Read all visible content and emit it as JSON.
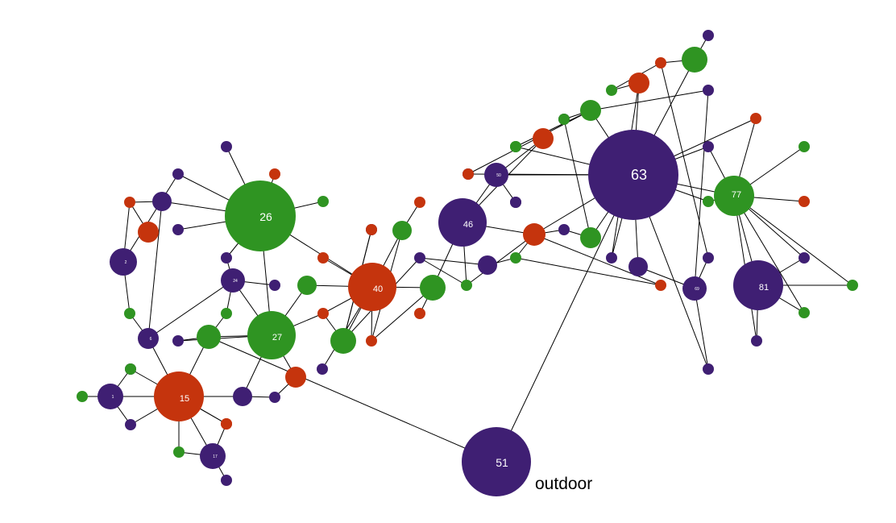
{
  "graph": {
    "colors": {
      "purple": "#3f1f73",
      "green": "#2f9422",
      "red": "#c5340d",
      "edge": "#000000",
      "label": "#ffffff",
      "annotation": "#000000"
    },
    "nodes": [
      {
        "id": "n15",
        "label": "15",
        "color": "red"
      },
      {
        "id": "n26",
        "label": "26",
        "color": "green"
      },
      {
        "id": "n27",
        "label": "27",
        "color": "green"
      },
      {
        "id": "n40",
        "label": "40",
        "color": "red"
      },
      {
        "id": "n46",
        "label": "46",
        "color": "purple"
      },
      {
        "id": "n51",
        "label": "51",
        "color": "purple"
      },
      {
        "id": "n63",
        "label": "63",
        "color": "purple"
      },
      {
        "id": "n77",
        "label": "77",
        "color": "green"
      },
      {
        "id": "n81",
        "label": "81",
        "color": "purple"
      },
      {
        "id": "n24",
        "label": "24",
        "color": "purple"
      },
      {
        "id": "n17",
        "label": "17",
        "color": "purple"
      },
      {
        "id": "n2",
        "label": "2",
        "color": "purple"
      },
      {
        "id": "n66",
        "label": "",
        "color": "green"
      },
      {
        "id": "n1",
        "label": "1",
        "color": "purple"
      },
      {
        "id": "n6",
        "label": "6",
        "color": "purple"
      },
      {
        "id": "n28",
        "label": "",
        "color": "purple"
      },
      {
        "id": "n10",
        "label": "",
        "color": "purple"
      },
      {
        "id": "n9",
        "label": "",
        "color": "red"
      },
      {
        "id": "n50",
        "label": "50",
        "color": "purple"
      },
      {
        "id": "n49",
        "label": "",
        "color": "purple"
      },
      {
        "id": "n64",
        "label": "",
        "color": "purple"
      },
      {
        "id": "n69",
        "label": "69",
        "color": "purple"
      },
      {
        "id": "n41",
        "label": "",
        "color": "red"
      },
      {
        "id": "n72",
        "label": "",
        "color": "green"
      },
      {
        "id": "n23",
        "label": "",
        "color": "green"
      },
      {
        "id": "n39",
        "label": "",
        "color": "green"
      },
      {
        "id": "n73",
        "label": "",
        "color": "red"
      },
      {
        "id": "n62",
        "label": "",
        "color": "red"
      },
      {
        "id": "n60",
        "label": "",
        "color": "green"
      },
      {
        "id": "n82",
        "label": "",
        "color": "green"
      },
      {
        "id": "n86",
        "label": "",
        "color": "red"
      },
      {
        "id": "n88",
        "label": "",
        "color": "green"
      },
      {
        "id": "n48",
        "label": "",
        "color": "green"
      },
      {
        "id": "a1",
        "label": "",
        "color": "purple"
      },
      {
        "id": "a2",
        "label": "",
        "color": "red"
      },
      {
        "id": "a3",
        "label": "",
        "color": "green"
      },
      {
        "id": "a4",
        "label": "",
        "color": "purple"
      },
      {
        "id": "a5",
        "label": "",
        "color": "purple"
      },
      {
        "id": "a6",
        "label": "",
        "color": "purple"
      },
      {
        "id": "a7",
        "label": "",
        "color": "red"
      },
      {
        "id": "a8",
        "label": "",
        "color": "green"
      },
      {
        "id": "a9",
        "label": "",
        "color": "green"
      },
      {
        "id": "a10",
        "label": "",
        "color": "red"
      },
      {
        "id": "a11",
        "label": "",
        "color": "green"
      },
      {
        "id": "a12",
        "label": "",
        "color": "purple"
      },
      {
        "id": "a13",
        "label": "",
        "color": "purple"
      },
      {
        "id": "a14",
        "label": "",
        "color": "purple"
      },
      {
        "id": "a15",
        "label": "",
        "color": "red"
      },
      {
        "id": "a16",
        "label": "",
        "color": "green"
      },
      {
        "id": "a17",
        "label": "",
        "color": "purple"
      },
      {
        "id": "a18",
        "label": "",
        "color": "red"
      },
      {
        "id": "a19",
        "label": "",
        "color": "green"
      },
      {
        "id": "a20",
        "label": "",
        "color": "green"
      },
      {
        "id": "a21",
        "label": "",
        "color": "purple"
      },
      {
        "id": "a22",
        "label": "",
        "color": "purple"
      },
      {
        "id": "a23",
        "label": "",
        "color": "red"
      },
      {
        "id": "a24",
        "label": "",
        "color": "purple"
      },
      {
        "id": "a25",
        "label": "",
        "color": "red"
      },
      {
        "id": "a26",
        "label": "",
        "color": "purple"
      },
      {
        "id": "a27",
        "label": "",
        "color": "purple"
      },
      {
        "id": "a28",
        "label": "",
        "color": "red"
      },
      {
        "id": "a29",
        "label": "",
        "color": "red"
      },
      {
        "id": "a30",
        "label": "",
        "color": "red"
      },
      {
        "id": "a31",
        "label": "",
        "color": "green"
      },
      {
        "id": "a32",
        "label": "",
        "color": "purple"
      },
      {
        "id": "a33",
        "label": "",
        "color": "green"
      },
      {
        "id": "a34",
        "label": "",
        "color": "purple"
      },
      {
        "id": "a35",
        "label": "",
        "color": "purple"
      },
      {
        "id": "a36",
        "label": "",
        "color": "purple"
      },
      {
        "id": "a37",
        "label": "",
        "color": "green"
      },
      {
        "id": "a38",
        "label": "",
        "color": "purple"
      },
      {
        "id": "a39",
        "label": "",
        "color": "red"
      },
      {
        "id": "a40",
        "label": "",
        "color": "purple"
      },
      {
        "id": "a41",
        "label": "",
        "color": "purple"
      },
      {
        "id": "a42",
        "label": "",
        "color": "red"
      },
      {
        "id": "a43",
        "label": "",
        "color": "purple"
      },
      {
        "id": "a44",
        "label": "",
        "color": "purple"
      },
      {
        "id": "a45",
        "label": "",
        "color": "red"
      },
      {
        "id": "a46",
        "label": "",
        "color": "green"
      },
      {
        "id": "a47",
        "label": "",
        "color": "red"
      },
      {
        "id": "a48",
        "label": "",
        "color": "purple"
      },
      {
        "id": "a49",
        "label": "",
        "color": "green"
      },
      {
        "id": "a50",
        "label": "",
        "color": "green"
      },
      {
        "id": "a51",
        "label": "",
        "color": "green"
      },
      {
        "id": "a52",
        "label": "",
        "color": "purple"
      },
      {
        "id": "a53",
        "label": "",
        "color": "purple"
      },
      {
        "id": "a54",
        "label": "",
        "color": "green"
      },
      {
        "id": "a55",
        "label": "",
        "color": "purple"
      },
      {
        "id": "a56",
        "label": "",
        "color": "red"
      },
      {
        "id": "a57",
        "label": "",
        "color": "green"
      }
    ],
    "edges": [
      [
        "n26",
        "a1"
      ],
      [
        "n26",
        "a2"
      ],
      [
        "n26",
        "a3"
      ],
      [
        "n26",
        "a4"
      ],
      [
        "n26",
        "n10"
      ],
      [
        "n26",
        "a5"
      ],
      [
        "n26",
        "a6"
      ],
      [
        "n26",
        "n27"
      ],
      [
        "n26",
        "n40"
      ],
      [
        "n10",
        "a7"
      ],
      [
        "n10",
        "n6"
      ],
      [
        "a7",
        "n2"
      ],
      [
        "a7",
        "n9"
      ],
      [
        "n2",
        "a8"
      ],
      [
        "n2",
        "a4"
      ],
      [
        "a8",
        "n6"
      ],
      [
        "n6",
        "n15"
      ],
      [
        "n6",
        "n24"
      ],
      [
        "n24",
        "a6"
      ],
      [
        "n24",
        "a9"
      ],
      [
        "n24",
        "n27"
      ],
      [
        "n24",
        "a21"
      ],
      [
        "a9",
        "n66"
      ],
      [
        "n27",
        "n66"
      ],
      [
        "n27",
        "a11"
      ],
      [
        "n27",
        "a10"
      ],
      [
        "n27",
        "n41"
      ],
      [
        "n27",
        "n28"
      ],
      [
        "n27",
        "a12"
      ],
      [
        "n66",
        "a12"
      ],
      [
        "n66",
        "n15"
      ],
      [
        "n66",
        "n51"
      ],
      [
        "n28",
        "n15"
      ],
      [
        "n28",
        "a13"
      ],
      [
        "a13",
        "n41"
      ],
      [
        "n15",
        "a14"
      ],
      [
        "n15",
        "a15"
      ],
      [
        "n15",
        "a16"
      ],
      [
        "n15",
        "n1"
      ],
      [
        "n15",
        "a17"
      ],
      [
        "n15",
        "n17"
      ],
      [
        "n15",
        "a18"
      ],
      [
        "n15",
        "a19"
      ],
      [
        "n1",
        "a16"
      ],
      [
        "n1",
        "a20"
      ],
      [
        "n1",
        "a17"
      ],
      [
        "n17",
        "a18"
      ],
      [
        "n17",
        "a19"
      ],
      [
        "n17",
        "a22"
      ],
      [
        "n40",
        "a11"
      ],
      [
        "n40",
        "a10"
      ],
      [
        "n40",
        "n72"
      ],
      [
        "n40",
        "a23"
      ],
      [
        "n40",
        "a24"
      ],
      [
        "n40",
        "a25"
      ],
      [
        "n40",
        "n23"
      ],
      [
        "n40",
        "n39"
      ],
      [
        "n72",
        "a10"
      ],
      [
        "n72",
        "a26"
      ],
      [
        "n72",
        "a27"
      ],
      [
        "n72",
        "a28"
      ],
      [
        "n39",
        "a25"
      ],
      [
        "n39",
        "a29"
      ],
      [
        "n39",
        "n46"
      ],
      [
        "n23",
        "a30"
      ],
      [
        "n23",
        "a25"
      ],
      [
        "n46",
        "n73"
      ],
      [
        "n46",
        "n50"
      ],
      [
        "n46",
        "n62"
      ],
      [
        "n46",
        "a31"
      ],
      [
        "n50",
        "n73"
      ],
      [
        "n50",
        "a32"
      ],
      [
        "n50",
        "n63"
      ],
      [
        "n63",
        "a33"
      ],
      [
        "n63",
        "n62"
      ],
      [
        "n63",
        "n48"
      ],
      [
        "n63",
        "n82"
      ],
      [
        "n63",
        "n77"
      ],
      [
        "n63",
        "n88"
      ],
      [
        "n63",
        "a34"
      ],
      [
        "n63",
        "n51"
      ],
      [
        "n63",
        "a35"
      ],
      [
        "n63",
        "a36"
      ],
      [
        "n63",
        "a37"
      ],
      [
        "n63",
        "n86"
      ],
      [
        "n63",
        "n64"
      ],
      [
        "n63",
        "a39"
      ],
      [
        "n63",
        "a40"
      ],
      [
        "n62",
        "a41"
      ],
      [
        "n62",
        "a31"
      ],
      [
        "n62",
        "n60"
      ],
      [
        "n62",
        "a42"
      ],
      [
        "n60",
        "n49"
      ],
      [
        "n60",
        "a42"
      ],
      [
        "n49",
        "a26"
      ],
      [
        "a26",
        "a31"
      ],
      [
        "n48",
        "a41"
      ],
      [
        "n48",
        "a43"
      ],
      [
        "n82",
        "a44"
      ],
      [
        "n82",
        "a45"
      ],
      [
        "n88",
        "a46"
      ],
      [
        "n88",
        "a47"
      ],
      [
        "n88",
        "a48"
      ],
      [
        "n88",
        "a49"
      ],
      [
        "a45",
        "a50"
      ],
      [
        "a45",
        "a52"
      ],
      [
        "n77",
        "a37"
      ],
      [
        "n77",
        "a51"
      ],
      [
        "n77",
        "a53"
      ],
      [
        "n77",
        "a54"
      ],
      [
        "n77",
        "a55"
      ],
      [
        "n77",
        "a56"
      ],
      [
        "n77",
        "n81"
      ],
      [
        "n77",
        "a57"
      ],
      [
        "n77",
        "a39"
      ],
      [
        "n77",
        "a35"
      ],
      [
        "n86",
        "a34"
      ],
      [
        "n86",
        "a50"
      ],
      [
        "n64",
        "n69"
      ],
      [
        "n69",
        "a40"
      ],
      [
        "n69",
        "a52"
      ],
      [
        "n69",
        "a48"
      ],
      [
        "n81",
        "a53"
      ],
      [
        "n81",
        "a54"
      ],
      [
        "n81",
        "a55"
      ],
      [
        "n81",
        "a57"
      ]
    ],
    "annotation": "outdoor"
  }
}
